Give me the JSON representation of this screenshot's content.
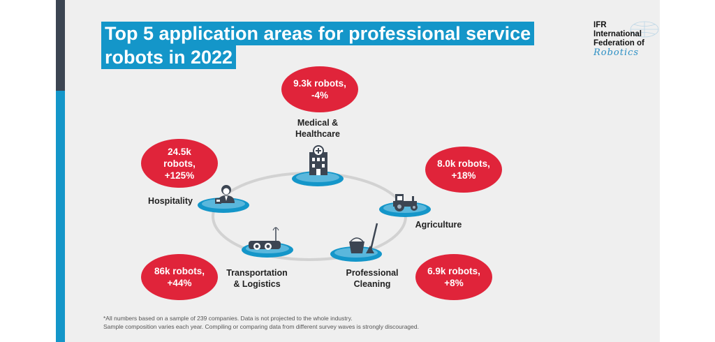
{
  "title": {
    "line1": "Top 5 application areas for professional service",
    "line2": "robots in 2022"
  },
  "logo": {
    "line1": "IFR",
    "line2": "International",
    "line3": "Federation of",
    "line4": "Robotics"
  },
  "areas": [
    {
      "label": "Medical &\nHealthcare",
      "stat": "9.3k robots,\n-4%",
      "icon": "hospital-icon"
    },
    {
      "label": "Agriculture",
      "stat": "8.0k robots,\n+18%",
      "icon": "tractor-icon"
    },
    {
      "label": "Professional\nCleaning",
      "stat": "6.9k robots,\n+8%",
      "icon": "cleaning-bucket-mop-icon"
    },
    {
      "label": "Transportation\n& Logistics",
      "stat": "86k robots,\n+44%",
      "icon": "transport-robot-icon"
    },
    {
      "label": "Hospitality",
      "stat": "24.5k\nrobots,\n+125%",
      "icon": "receptionist-icon"
    }
  ],
  "footnote": {
    "line1": "*All numbers based on a sample of 239 companies. Data is not projected to the whole industry.",
    "line2": "Sample composition varies each year. Compiling or comparing data from different survey waves is strongly discouraged."
  },
  "colors": {
    "accent_blue": "#1496c9",
    "bubble_red": "#e0243a",
    "dark_bar": "#3c4552",
    "background": "#efefef"
  }
}
